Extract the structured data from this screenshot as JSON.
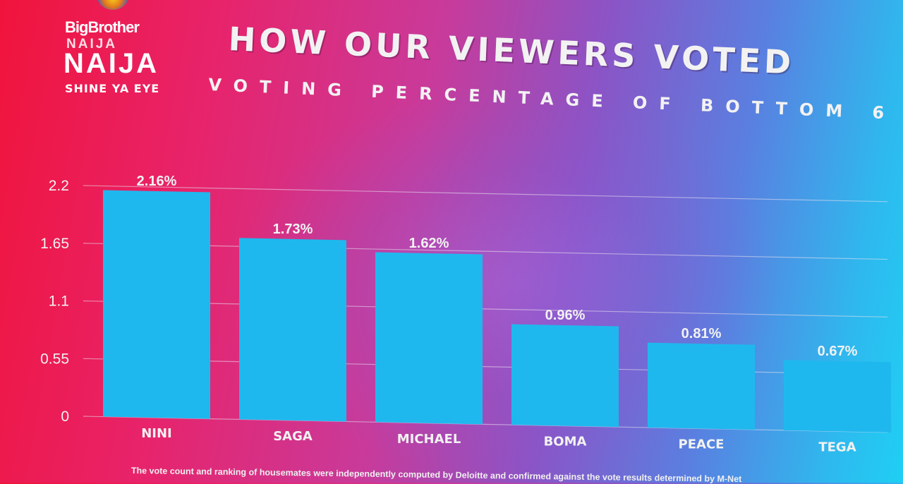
{
  "logo": {
    "line1": "BigBrother",
    "line2": "NAIJA",
    "line3": "NAIJA",
    "line4": "SHINE YA EYE"
  },
  "header": {
    "title": "HOW OUR VIEWERS VOTED",
    "subtitle": "VOTING PERCENTAGE OF BOTTOM 6"
  },
  "footer": {
    "note": "The vote count and ranking of housemates were independently computed by Deloitte and confirmed against the vote results determined by M-Net"
  },
  "colors": {
    "bar": "#1fb8ee",
    "text": "#f2f2f2",
    "gridline": "#e8e0ee"
  },
  "chart_data": {
    "type": "bar",
    "categories": [
      "NINI",
      "SAGA",
      "MICHAEL",
      "BOMA",
      "PEACE",
      "TEGA"
    ],
    "values": [
      2.16,
      1.73,
      1.62,
      0.96,
      0.81,
      0.67
    ],
    "data_labels": [
      "2.16%",
      "1.73%",
      "1.62%",
      "0.96%",
      "0.81%",
      "0.67%"
    ],
    "yticks": [
      0,
      0.55,
      1.1,
      1.65,
      2.2
    ],
    "ytick_labels": [
      "0",
      "0.55",
      "1.1",
      "1.65",
      "2.2"
    ],
    "ylim": [
      0,
      2.2
    ],
    "grid": true,
    "legend": "none"
  }
}
